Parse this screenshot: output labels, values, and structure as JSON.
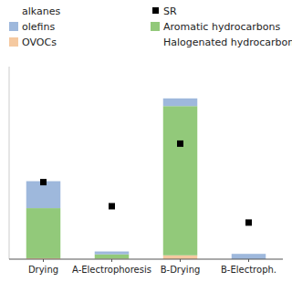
{
  "chart_data": {
    "type": "bar",
    "stacked": true,
    "categories": [
      "Drying",
      "A-Electrophoresis",
      "B-Drying",
      "B-Electroph."
    ],
    "series": [
      {
        "name": "OVOCs",
        "color": "#f5c9a0",
        "values": [
          1.0,
          0.5,
          4.0,
          0.0
        ]
      },
      {
        "name": "Aromatic hydrocarbons",
        "color": "#92c97a",
        "values": [
          52.0,
          4.5,
          155.0,
          0.0
        ]
      },
      {
        "name": "olefins",
        "color": "#9eb8dc",
        "values": [
          28.0,
          3.0,
          8.0,
          5.5
        ]
      },
      {
        "name": "SR",
        "type": "scatter",
        "color": "#000000",
        "marker": "square",
        "values": [
          80.0,
          55.0,
          120.0,
          38.0
        ]
      }
    ],
    "annotations": [
      "alkanes",
      "Halogenated hydrocarbons"
    ],
    "ylim": [
      0,
      200
    ],
    "tick_labels": "x",
    "grid": false
  }
}
